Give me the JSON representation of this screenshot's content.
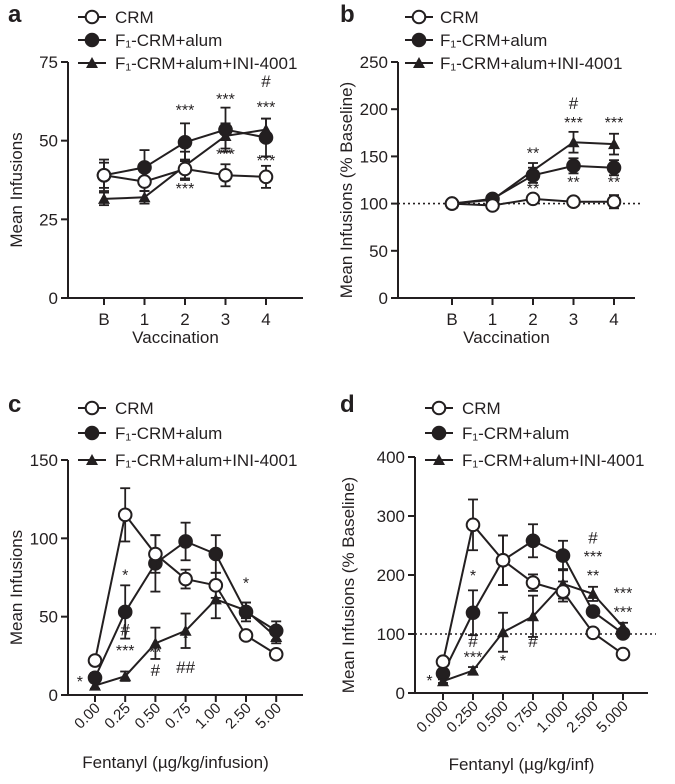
{
  "legend": {
    "series": [
      "CRM",
      "F₁-CRM+alum",
      "F₁-CRM+alum+INI-4001"
    ],
    "markers": [
      "open-circle",
      "filled-circle",
      "filled-triangle"
    ]
  },
  "chart_data": [
    {
      "panel": "a",
      "type": "line",
      "xlabel": "Vaccination",
      "ylabel": "Mean Infusions",
      "categories": [
        "B",
        "1",
        "2",
        "3",
        "4"
      ],
      "yticks": [
        "0",
        "25",
        "50",
        "75"
      ],
      "ylim": [
        0,
        75
      ],
      "baseline": null,
      "series": [
        {
          "name": "CRM",
          "values": [
            39,
            37,
            41,
            39,
            38.5
          ],
          "errors": [
            4,
            3,
            3,
            3.5,
            3.5
          ]
        },
        {
          "name": "F₁-CRM+alum",
          "values": [
            39,
            41.5,
            49.5,
            53.5,
            51
          ],
          "errors": [
            5,
            5.5,
            6,
            7,
            6
          ]
        },
        {
          "name": "F₁-CRM+alum+INI-4001",
          "values": [
            31.5,
            32,
            42,
            51.5,
            53.5
          ],
          "errors": [
            2,
            2,
            4.5,
            4,
            3.5
          ]
        }
      ],
      "annotations": [
        {
          "text": "***",
          "x": 2,
          "y": 58
        },
        {
          "text": "***",
          "x": 2,
          "y": 33
        },
        {
          "text": "***",
          "x": 3,
          "y": 61.5
        },
        {
          "text": "***",
          "x": 3,
          "y": 44
        },
        {
          "text": "#",
          "x": 4,
          "y": 67
        },
        {
          "text": "***",
          "x": 4,
          "y": 59
        },
        {
          "text": "***",
          "x": 4,
          "y": 42
        }
      ]
    },
    {
      "panel": "b",
      "type": "line",
      "xlabel": "Vaccination",
      "ylabel": "Mean Infusions (% Baseline)",
      "categories": [
        "B",
        "1",
        "2",
        "3",
        "4"
      ],
      "yticks": [
        "0",
        "50",
        "100",
        "150",
        "200",
        "250"
      ],
      "ylim": [
        0,
        250
      ],
      "baseline": 100,
      "series": [
        {
          "name": "CRM",
          "values": [
            100,
            98,
            105,
            102,
            102
          ],
          "errors": [
            3,
            3,
            4,
            4,
            7
          ]
        },
        {
          "name": "F₁-CRM+alum",
          "values": [
            100,
            105,
            130,
            140,
            138
          ],
          "errors": [
            3,
            4,
            8,
            8,
            8
          ]
        },
        {
          "name": "F₁-CRM+alum+INI-4001",
          "values": [
            100,
            104,
            135,
            165,
            163
          ],
          "errors": [
            3,
            3,
            8,
            11,
            11
          ]
        }
      ],
      "annotations": [
        {
          "text": "**",
          "x": 2,
          "y": 148
        },
        {
          "text": "**",
          "x": 2,
          "y": 110
        },
        {
          "text": "#",
          "x": 3,
          "y": 200
        },
        {
          "text": "***",
          "x": 3,
          "y": 180
        },
        {
          "text": "**",
          "x": 3,
          "y": 117
        },
        {
          "text": "***",
          "x": 4,
          "y": 180
        },
        {
          "text": "**",
          "x": 4,
          "y": 117
        }
      ]
    },
    {
      "panel": "c",
      "type": "line",
      "xlabel": "Fentanyl (µg/kg/infusion)",
      "ylabel": "Mean Infusions",
      "categories": [
        "0.00",
        "0.25",
        "0.50",
        "0.75",
        "1.00",
        "2.50",
        "5.00"
      ],
      "yticks": [
        "0",
        "50",
        "100",
        "150"
      ],
      "ylim": [
        0,
        150
      ],
      "baseline": null,
      "series": [
        {
          "name": "CRM",
          "values": [
            22,
            115,
            90,
            74,
            70,
            38,
            26
          ],
          "errors": [
            3,
            17,
            12,
            6,
            8,
            3,
            2
          ]
        },
        {
          "name": "F₁-CRM+alum",
          "values": [
            11,
            53,
            84,
            98,
            90,
            53,
            41
          ],
          "errors": [
            3,
            17,
            18,
            12,
            12,
            6,
            6
          ]
        },
        {
          "name": "F₁-CRM+alum+INI-4001",
          "values": [
            6,
            12,
            33,
            41,
            61,
            54,
            37
          ],
          "errors": [
            2,
            3,
            10,
            11,
            12,
            5,
            4
          ]
        }
      ],
      "annotations": [
        {
          "text": "*",
          "x": -0.5,
          "y": 5
        },
        {
          "text": "*",
          "x": 1,
          "y": 73
        },
        {
          "text": "#",
          "x": 1,
          "y": 38
        },
        {
          "text": "***",
          "x": 1,
          "y": 25
        },
        {
          "text": "**",
          "x": 2,
          "y": 24
        },
        {
          "text": "#",
          "x": 2,
          "y": 12
        },
        {
          "text": "*",
          "x": 3,
          "y": 33
        },
        {
          "text": "##",
          "x": 3,
          "y": 14
        },
        {
          "text": "*",
          "x": 5,
          "y": 68
        }
      ]
    },
    {
      "panel": "d",
      "type": "line",
      "xlabel": "Fentanyl (µg/kg/inf)",
      "ylabel": "Mean Infusions (% Baseline)",
      "categories": [
        "0.000",
        "0.250",
        "0.500",
        "0.750",
        "1.000",
        "2.500",
        "5.000"
      ],
      "yticks": [
        "0",
        "100",
        "200",
        "300",
        "400"
      ],
      "ylim": [
        0,
        400
      ],
      "baseline": 100,
      "series": [
        {
          "name": "CRM",
          "values": [
            53,
            285,
            225,
            187,
            172,
            102,
            66
          ],
          "errors": [
            5,
            43,
            42,
            14,
            17,
            5,
            4
          ]
        },
        {
          "name": "F₁-CRM+alum",
          "values": [
            33,
            136,
            225,
            258,
            233,
            138,
            101
          ],
          "errors": [
            5,
            38,
            42,
            28,
            25,
            7,
            6
          ]
        },
        {
          "name": "F₁-CRM+alum+INI-4001",
          "values": [
            20,
            38,
            103,
            130,
            185,
            168,
            112
          ],
          "errors": [
            3,
            6,
            33,
            35,
            25,
            12,
            7
          ]
        }
      ],
      "annotations": [
        {
          "text": "*",
          "x": -0.45,
          "y": 12
        },
        {
          "text": "*",
          "x": 1,
          "y": 190
        },
        {
          "text": "#",
          "x": 1,
          "y": 78
        },
        {
          "text": "***",
          "x": 1,
          "y": 52
        },
        {
          "text": "*",
          "x": 2,
          "y": 46
        },
        {
          "text": "#",
          "x": 3,
          "y": 78
        },
        {
          "text": "#",
          "x": 5,
          "y": 253
        },
        {
          "text": "***",
          "x": 5,
          "y": 222
        },
        {
          "text": "**",
          "x": 5,
          "y": 190
        },
        {
          "text": "***",
          "x": 6,
          "y": 160
        },
        {
          "text": "***",
          "x": 6,
          "y": 128
        }
      ]
    }
  ]
}
